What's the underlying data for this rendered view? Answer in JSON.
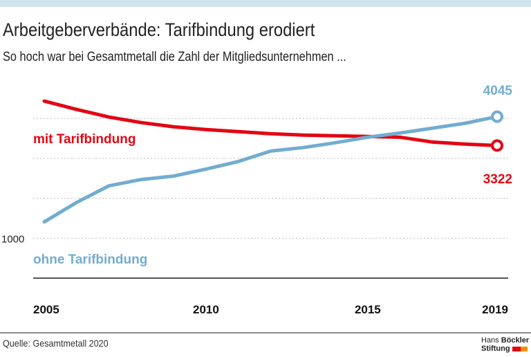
{
  "header": {
    "title": "Arbeitgeberverbände: Tarifbindung erodiert",
    "subtitle": "So hoch war bei Gesamtmetall die Zahl der Mitgliedsunternehmen ..."
  },
  "footer": {
    "source": "Quelle: Gesamtmetall 2020",
    "logo_line1_a": "Hans",
    "logo_line1_b": "Böckler",
    "logo_line2": "Stiftung"
  },
  "chart_data": {
    "type": "line",
    "x": [
      2005,
      2006,
      2007,
      2008,
      2009,
      2010,
      2011,
      2012,
      2013,
      2014,
      2015,
      2016,
      2017,
      2018,
      2019
    ],
    "xticks": [
      "2005",
      "2010",
      "2015",
      "2019"
    ],
    "ylim": [
      0,
      4500
    ],
    "yticks_labeled": [
      "1000"
    ],
    "grid": true,
    "series": [
      {
        "name": "mit Tarifbindung",
        "color": "#e30613",
        "values": [
          4435,
          4226,
          4035,
          3896,
          3791,
          3722,
          3670,
          3617,
          3583,
          3565,
          3548,
          3530,
          3409,
          3357,
          3322
        ],
        "end_label": "3322"
      },
      {
        "name": "ohne Tarifbindung",
        "color": "#72acd0",
        "values": [
          1409,
          1896,
          2313,
          2470,
          2557,
          2730,
          2922,
          3183,
          3270,
          3391,
          3530,
          3635,
          3757,
          3878,
          4045
        ],
        "end_label": "4045"
      }
    ]
  }
}
